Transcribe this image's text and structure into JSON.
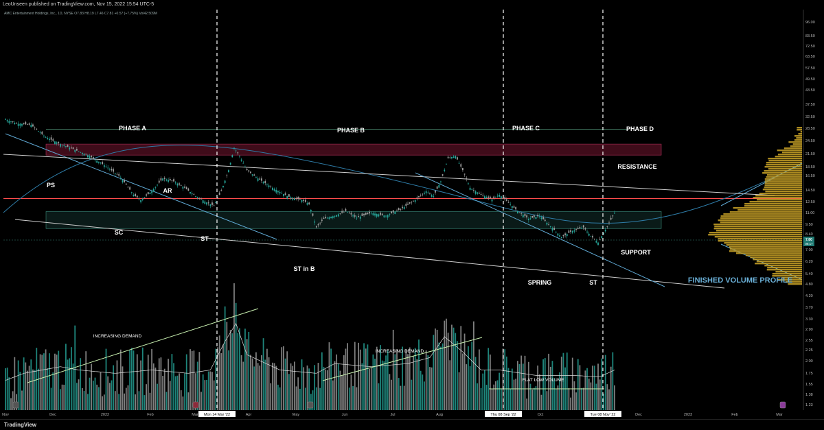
{
  "header": {
    "publisher": "LeoUnseen published on TradingView.com, Nov 15, 2022 15:54 UTC-5",
    "symbol_line": "AMC Entertainment Holdings, Inc., 1D, NYSE  O7.83  H8.19  L7.46  C7.81  +0.57 (+7.75%)  Vol42.509M"
  },
  "footer": {
    "logo": "TradingView"
  },
  "colors": {
    "up": "#26a69a",
    "down": "#9e9e9e",
    "resistance": "#8b1a3a",
    "support": "#1e4a44",
    "red_line": "#ff4d4d",
    "trend": "#5fa8d3",
    "curve": "#2e7ba6",
    "profile": "#c9a227",
    "demand": "#c8f0b0"
  },
  "chart_data": {
    "type": "candlestick",
    "y_axis_scale": "log",
    "y_ticks": [
      "96.00",
      "83.50",
      "72.50",
      "63.50",
      "57.50",
      "49.50",
      "43.50",
      "37.50",
      "32.50",
      "28.50",
      "24.50",
      "21.50",
      "18.50",
      "16.50",
      "14.50",
      "12.50",
      "11.00",
      "9.50",
      "8.40",
      "7.00",
      "6.20",
      "5.40",
      "4.80",
      "4.20",
      "3.70",
      "3.30",
      "2.90",
      "2.55",
      "2.25",
      "2.00",
      "1.75",
      "1.55",
      "1.38",
      "1.23"
    ],
    "x_ticks": [
      "Nov",
      "Dec",
      "2022",
      "Feb",
      "Mar",
      "Apr",
      "May",
      "Jun",
      "Jul",
      "Aug",
      "Oct",
      "Dec",
      "2023",
      "Feb",
      "Mar"
    ],
    "date_markers": [
      "Mon 14 Mar '22",
      "Thu 08 Sep '22",
      "Tue 08 Nov '22"
    ],
    "price_labels": {
      "current": "7.80",
      "countdown": "06:17"
    },
    "price_anchors": [
      [
        0,
        28
      ],
      [
        6,
        26.5
      ],
      [
        14,
        26
      ],
      [
        22,
        22
      ],
      [
        30,
        20
      ],
      [
        38,
        18.5
      ],
      [
        46,
        17
      ],
      [
        54,
        15
      ],
      [
        62,
        13
      ],
      [
        66,
        11.5
      ],
      [
        70,
        10
      ],
      [
        74,
        9.3
      ],
      [
        80,
        10.5
      ],
      [
        86,
        12.5
      ],
      [
        92,
        12
      ],
      [
        98,
        11
      ],
      [
        104,
        9.8
      ],
      [
        110,
        9
      ],
      [
        114,
        8.6
      ],
      [
        118,
        10.5
      ],
      [
        122,
        14
      ],
      [
        125,
        19
      ],
      [
        128,
        17
      ],
      [
        132,
        14
      ],
      [
        138,
        12.5
      ],
      [
        146,
        11
      ],
      [
        154,
        9.8
      ],
      [
        162,
        9.3
      ],
      [
        166,
        8.8
      ],
      [
        170,
        6.4
      ],
      [
        174,
        7.2
      ],
      [
        180,
        7.5
      ],
      [
        186,
        8
      ],
      [
        192,
        7.3
      ],
      [
        200,
        7.8
      ],
      [
        208,
        7.5
      ],
      [
        216,
        8.2
      ],
      [
        224,
        9.3
      ],
      [
        230,
        10.5
      ],
      [
        234,
        9.8
      ],
      [
        238,
        12
      ],
      [
        242,
        16.5
      ],
      [
        246,
        17
      ],
      [
        250,
        14
      ],
      [
        254,
        11
      ],
      [
        260,
        10
      ],
      [
        266,
        9.4
      ],
      [
        270,
        10
      ],
      [
        274,
        9.2
      ],
      [
        280,
        8
      ],
      [
        286,
        7.2
      ],
      [
        292,
        7.5
      ],
      [
        298,
        6.5
      ],
      [
        304,
        5.6
      ],
      [
        310,
        6.1
      ],
      [
        316,
        6.4
      ],
      [
        320,
        5.7
      ],
      [
        324,
        5.2
      ],
      [
        328,
        6.2
      ],
      [
        333,
        7.8
      ]
    ],
    "volume_anchors": [
      [
        0,
        1.35
      ],
      [
        10,
        1.45
      ],
      [
        30,
        1.55
      ],
      [
        40,
        1.5
      ],
      [
        60,
        1.45
      ],
      [
        80,
        1.5
      ],
      [
        100,
        1.45
      ],
      [
        112,
        1.5
      ],
      [
        120,
        2.0
      ],
      [
        126,
        2.4
      ],
      [
        132,
        1.75
      ],
      [
        150,
        1.5
      ],
      [
        170,
        1.45
      ],
      [
        180,
        1.6
      ],
      [
        200,
        1.55
      ],
      [
        220,
        1.6
      ],
      [
        232,
        1.7
      ],
      [
        240,
        2.1
      ],
      [
        250,
        1.8
      ],
      [
        260,
        1.5
      ],
      [
        270,
        1.5
      ],
      [
        290,
        1.42
      ],
      [
        310,
        1.42
      ],
      [
        325,
        1.4
      ],
      [
        333,
        1.5
      ]
    ],
    "volume_spikes": [
      [
        38,
        2.35
      ],
      [
        120,
        2.85
      ],
      [
        125,
        3.6
      ],
      [
        126,
        2.95
      ],
      [
        212,
        2.25
      ],
      [
        236,
        2.25
      ],
      [
        245,
        2.3
      ],
      [
        256,
        2.45
      ],
      [
        331,
        1.55
      ]
    ],
    "resistance_zone": {
      "price_low": 17.2,
      "price_high": 20.0,
      "label": "RESISTANCE"
    },
    "support_zone": {
      "price_low": 6.3,
      "price_high": 7.95,
      "label": "SUPPORT"
    },
    "horizontal_line_price": 9.5,
    "top_line_price": 24.5,
    "volume_profile_label": "FINISHED VOLUME PROFILE",
    "phases": [
      {
        "label": "PHASE A"
      },
      {
        "label": "PHASE B"
      },
      {
        "label": "PHASE C"
      },
      {
        "label": "PHASE D"
      }
    ],
    "events": [
      {
        "label": "PS"
      },
      {
        "label": "SC"
      },
      {
        "label": "AR"
      },
      {
        "label": "ST"
      },
      {
        "label": "ST in B"
      },
      {
        "label": "SPRING"
      },
      {
        "label": "ST"
      }
    ],
    "volume_annotations": [
      "INCREASING DEMAND",
      "INCREASING DEMAND",
      "FLAT LOW VOLUME"
    ]
  }
}
